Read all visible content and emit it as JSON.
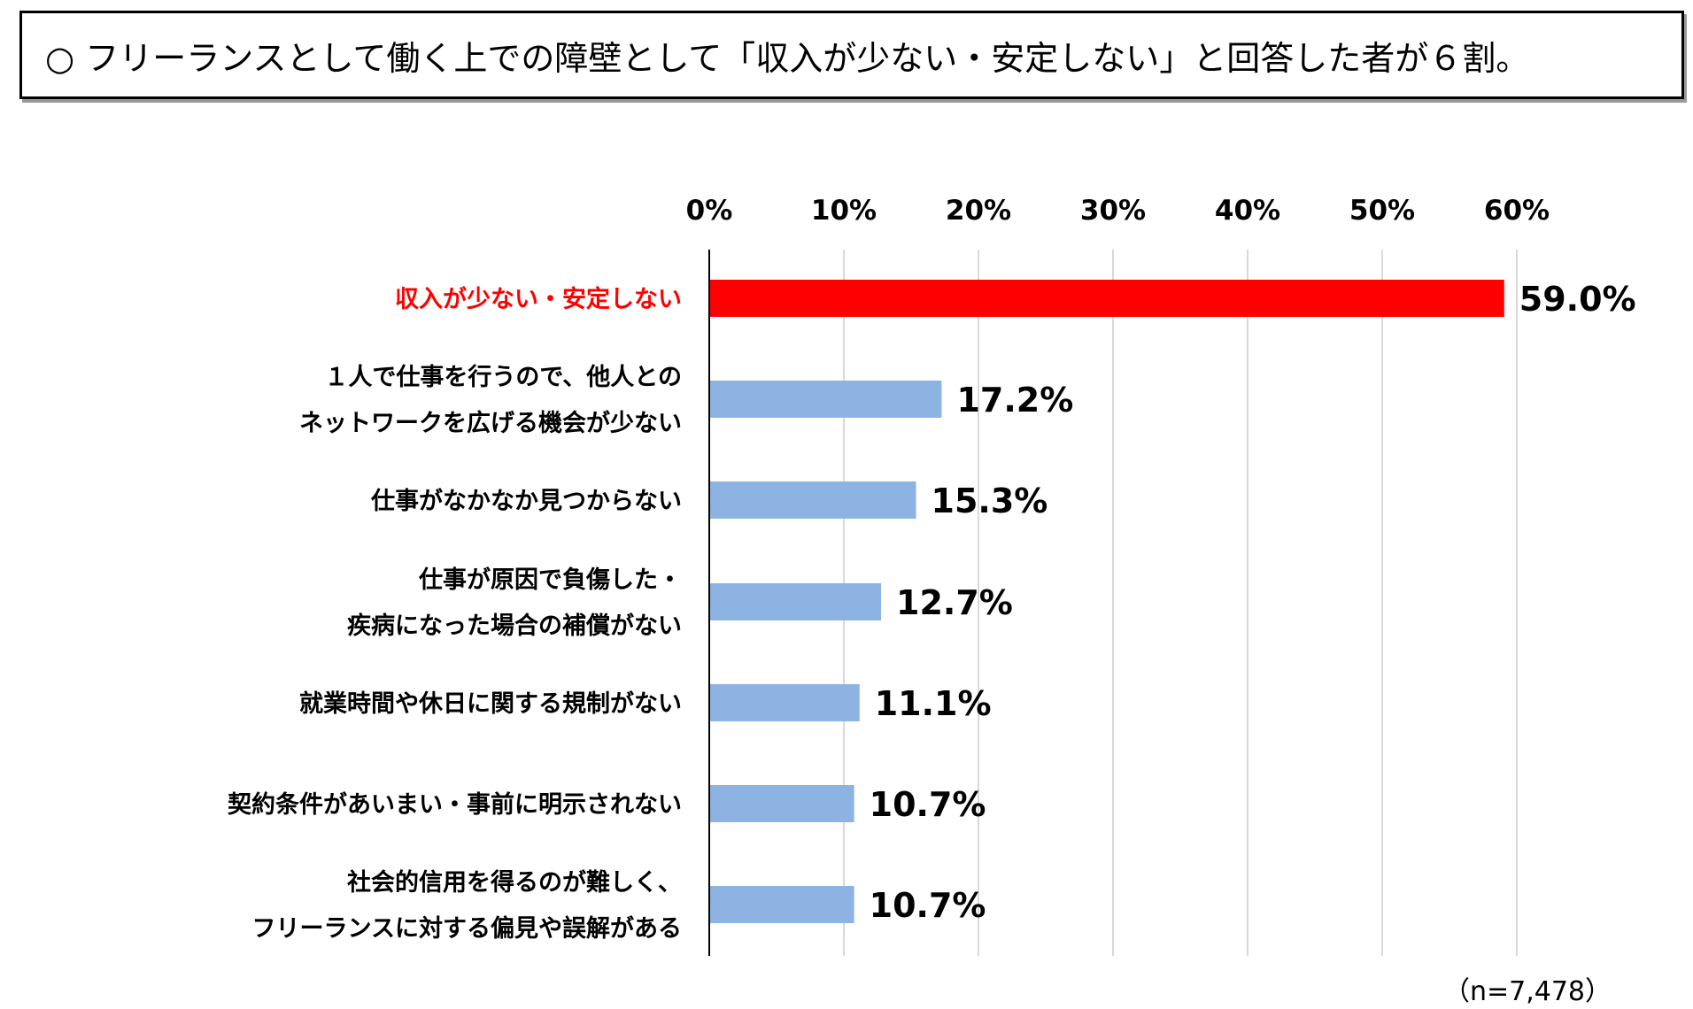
{
  "title": "○ フリーランスとして働く上での障壁として「収入が少ない・安定しない」と回答した者が６割。",
  "note": "（n=7,478）",
  "colors": {
    "highlight": "#ff0000",
    "bar": "#8db3e2",
    "grid": "#d9d9d9",
    "axis": "#000000"
  },
  "chart_data": {
    "type": "bar",
    "orientation": "horizontal",
    "categories": [
      [
        "収入が少ない・安定しない"
      ],
      [
        "１人で仕事を行うので、他人との",
        "ネットワークを広げる機会が少ない"
      ],
      [
        "仕事がなかなか見つからない"
      ],
      [
        "仕事が原因で負傷した・",
        "疾病になった場合の補償がない"
      ],
      [
        "就業時間や休日に関する規制がない"
      ],
      [
        "契約条件があいまい・事前に明示されない"
      ],
      [
        "社会的信用を得るのが難しく、",
        "フリーランスに対する偏見や誤解がある"
      ]
    ],
    "values": [
      59.0,
      17.2,
      15.3,
      12.7,
      11.1,
      10.7,
      10.7
    ],
    "value_labels": [
      "59.0%",
      "17.2%",
      "15.3%",
      "12.7%",
      "11.1%",
      "10.7%",
      "10.7%"
    ],
    "highlight_index": 0,
    "xlim": [
      0,
      60
    ],
    "x_ticks": [
      "0%",
      "10%",
      "20%",
      "30%",
      "40%",
      "50%",
      "60%"
    ],
    "grid": true,
    "axis_position": "top"
  }
}
